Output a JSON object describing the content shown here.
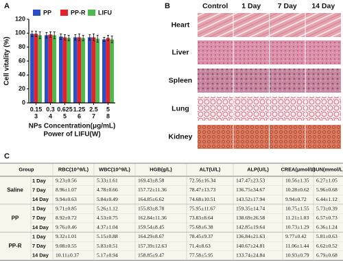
{
  "panel_labels": [
    "A",
    "B",
    "C"
  ],
  "chart_data": {
    "type": "bar",
    "categories": [
      "0.15",
      "0.3",
      "0.625",
      "1.25",
      "2.5",
      "5"
    ],
    "categories2": [
      "3",
      "4",
      "5",
      "6",
      "7",
      "8"
    ],
    "xlabel": "NPs Concentration(μg/mL)",
    "xlabel2": "Power of LIFU(W)",
    "ylabel": "Cell vitality (%)",
    "ylim": [
      0,
      120
    ],
    "yticks": [
      0,
      20,
      40,
      60,
      80,
      100,
      120
    ],
    "legend": "top",
    "series": [
      {
        "name": "PP",
        "color": "#2b4fc7",
        "values": [
          99,
          97,
          95,
          94,
          94,
          91
        ],
        "errors": [
          4,
          4,
          4,
          4,
          4,
          3
        ]
      },
      {
        "name": "PP-R",
        "color": "#e8202a",
        "values": [
          99,
          98,
          94,
          94,
          94,
          93
        ],
        "errors": [
          4,
          4,
          4,
          5,
          5,
          4
        ]
      },
      {
        "name": "LIFU",
        "color": "#4cbb4c",
        "values": [
          97,
          97,
          93,
          93,
          92,
          91
        ],
        "errors": [
          5,
          5,
          4,
          4,
          5,
          5
        ]
      }
    ]
  },
  "histology": {
    "columns": [
      "Control",
      "1 Day",
      "7 Day",
      "14 Day"
    ],
    "rows": [
      "Heart",
      "Liver",
      "Spleen",
      "Lung",
      "Kidney"
    ]
  },
  "table": {
    "header": [
      "Group",
      "RBC(10^9/L)",
      "WBC(10^9/L)",
      "HGB(g/L)",
      "ALT(U/L)",
      "ALP(U/L)",
      "CREA(μmol/L)",
      "BUN(mmol/L)"
    ],
    "groups": [
      {
        "name": "Saline",
        "rows": [
          {
            "day": "1 Day",
            "values": [
              "9.23±0.56",
              "5.33±1.61",
              "169.43±8.58",
              "72.56±16.34",
              "147.47±23.53",
              "10.56±1.35",
              "6.27±1.05"
            ]
          },
          {
            "day": "7 Day",
            "values": [
              "8.96±1.07",
              "4.78±0.66",
              "157.72±11.36",
              "78.47±13.73",
              "136.75±34.67",
              "10.28±0.62",
              "5.96±0.68"
            ]
          },
          {
            "day": "14 Day",
            "values": [
              "9.94±0.63",
              "5.84±0.49",
              "164.85±6.62",
              "74.68±10.51",
              "143.52±17.94",
              "9.94±0.72",
              "6.44±1.12"
            ]
          }
        ]
      },
      {
        "name": "PP",
        "rows": [
          {
            "day": "1 Day",
            "values": [
              "9.71±0.85",
              "5.26±1.12",
              "155.83±8.78",
              "75.95±11.67",
              "159.35±14.74",
              "10.75±1.55",
              "5.73±0.39"
            ]
          },
          {
            "day": "7 Day",
            "values": [
              "8.92±0.72",
              "4.53±0.75",
              "162.84±11.36",
              "73.83±8.64",
              "138.69±26.58",
              "11.21±1.03",
              "6.57±0.73"
            ]
          },
          {
            "day": "14 Day",
            "values": [
              "9.76±0.46",
              "4.37±1.04",
              "159.54±8.45",
              "75.68±6.38",
              "142.85±19.64",
              "10.73±1.29",
              "6.36±1.24"
            ]
          }
        ]
      },
      {
        "name": "PP-R",
        "rows": [
          {
            "day": "1 Day",
            "values": [
              "9.32±1.01",
              "5.15±0.88",
              "164.29±8.67",
              "78.45±9.37",
              "136.84±21.63",
              "9.77±0.42",
              "5.81±0.63"
            ]
          },
          {
            "day": "7 Day",
            "values": [
              "9.08±0.55",
              "5.83±0.51",
              "157.39±12.63",
              "71.4±8.63",
              "140.67±24.81",
              "11.06±1.44",
              "6.62±0.52"
            ]
          },
          {
            "day": "14 Day",
            "values": [
              "10.11±0.37",
              "5.17±0.94",
              "158.85±9.47",
              "77.58±5.95",
              "133.74±24.84",
              "10.93±0.79",
              "6.79±0.68"
            ]
          }
        ]
      }
    ]
  }
}
